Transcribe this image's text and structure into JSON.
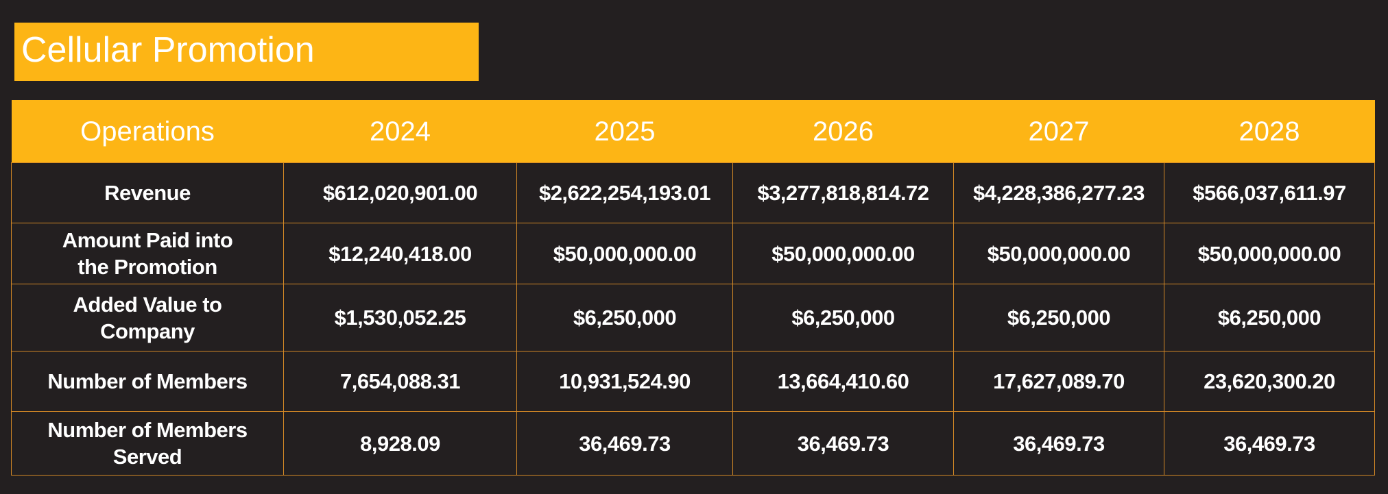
{
  "title": "Cellular Promotion",
  "table": {
    "headers": [
      "Operations",
      "2024",
      "2025",
      "2026",
      "2027",
      "2028"
    ],
    "rows": [
      {
        "label": "Revenue",
        "values": [
          "$612,020,901.00",
          "$2,622,254,193.01",
          "$3,277,818,814.72",
          "$4,228,386,277.23",
          "$566,037,611.97"
        ]
      },
      {
        "label": "Amount Paid into\nthe Promotion",
        "values": [
          "$12,240,418.00",
          "$50,000,000.00",
          "$50,000,000.00",
          "$50,000,000.00",
          "$50,000,000.00"
        ]
      },
      {
        "label": "Added Value to\nCompany",
        "values": [
          "$1,530,052.25",
          "$6,250,000",
          "$6,250,000",
          "$6,250,000",
          "$6,250,000"
        ]
      },
      {
        "label": "Number of Members",
        "values": [
          "7,654,088.31",
          "10,931,524.90",
          "13,664,410.60",
          "17,627,089.70",
          "23,620,300.20"
        ]
      },
      {
        "label": "Number of Members\nServed",
        "values": [
          "8,928.09",
          "36,469.73",
          "36,469.73",
          "36,469.73",
          "36,469.73"
        ]
      }
    ]
  },
  "colors": {
    "accent": "#fdb515",
    "background": "#231f20",
    "grid": "#d68a26",
    "text": "#ffffff"
  }
}
